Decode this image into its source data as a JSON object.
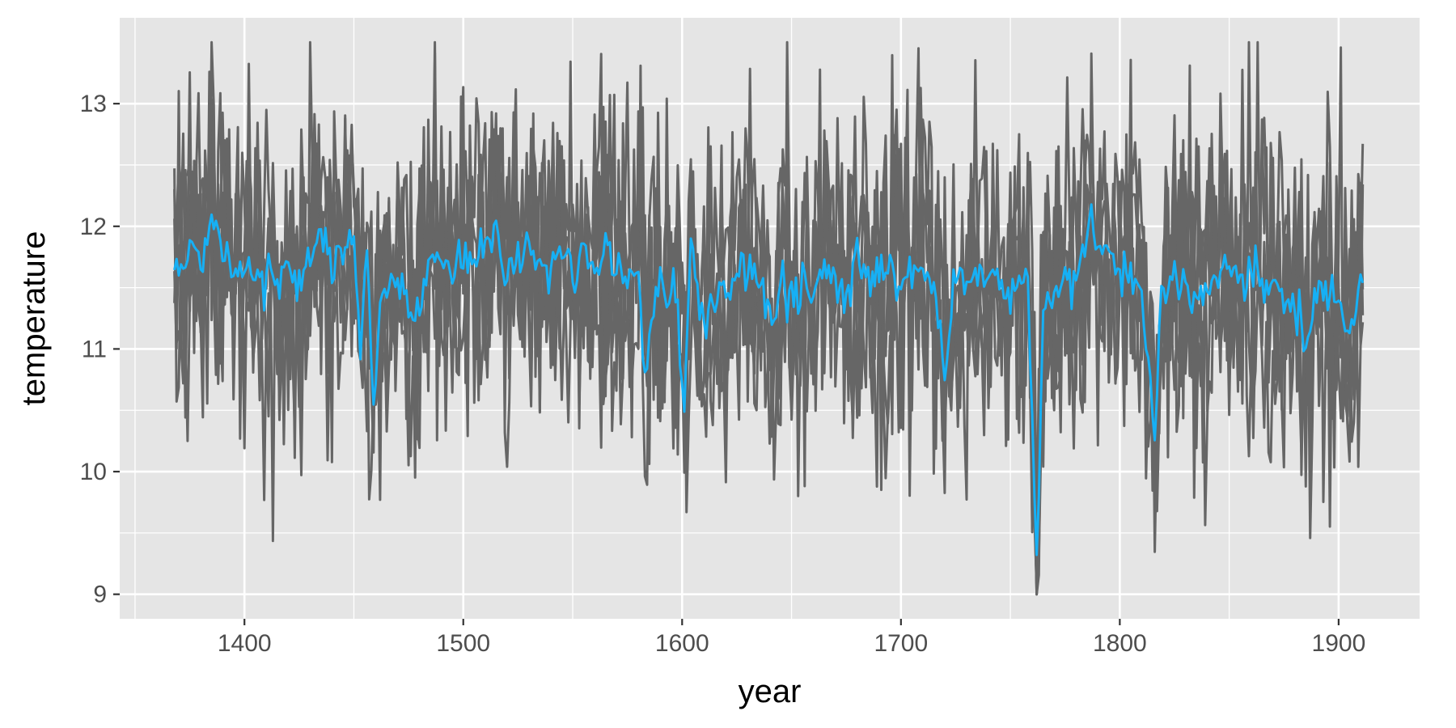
{
  "chart_data": {
    "type": "line",
    "xlabel": "year",
    "ylabel": "temperature",
    "xlim": [
      1343,
      1937
    ],
    "ylim": [
      8.8,
      13.7
    ],
    "x_ticks": [
      1400,
      1500,
      1600,
      1700,
      1800,
      1900
    ],
    "y_ticks": [
      9,
      10,
      11,
      12,
      13
    ],
    "x_tick_labels": [
      "1400",
      "1500",
      "1600",
      "1700",
      "1800",
      "1900"
    ],
    "y_tick_labels": [
      "9",
      "10",
      "11",
      "12",
      "13"
    ],
    "grid": true,
    "panel_background": "#e5e5e5",
    "grid_color": "#ffffff",
    "series": [
      {
        "color": "#666666",
        "kind": "ensemble",
        "x_start": 1368,
        "x_end": 1911,
        "mean": 11.55,
        "spread": 0.65,
        "y_min": 9.0,
        "y_max": 13.5
      },
      {
        "color": "#16b0f5",
        "kind": "mean",
        "x_start": 1368,
        "x_end": 1911,
        "points": [
          [
            1368,
            11.7
          ],
          [
            1372,
            11.65
          ],
          [
            1376,
            11.85
          ],
          [
            1380,
            11.65
          ],
          [
            1385,
            12.05
          ],
          [
            1390,
            11.75
          ],
          [
            1395,
            11.65
          ],
          [
            1400,
            11.75
          ],
          [
            1405,
            11.55
          ],
          [
            1410,
            11.6
          ],
          [
            1415,
            11.55
          ],
          [
            1420,
            11.65
          ],
          [
            1425,
            11.55
          ],
          [
            1430,
            11.85
          ],
          [
            1435,
            11.95
          ],
          [
            1440,
            11.65
          ],
          [
            1445,
            11.75
          ],
          [
            1450,
            11.85
          ],
          [
            1453,
            11.05
          ],
          [
            1456,
            11.75
          ],
          [
            1459,
            10.4
          ],
          [
            1462,
            11.35
          ],
          [
            1465,
            11.55
          ],
          [
            1470,
            11.6
          ],
          [
            1475,
            11.35
          ],
          [
            1480,
            11.25
          ],
          [
            1485,
            11.75
          ],
          [
            1490,
            11.8
          ],
          [
            1495,
            11.65
          ],
          [
            1500,
            11.75
          ],
          [
            1505,
            11.7
          ],
          [
            1510,
            11.8
          ],
          [
            1515,
            11.95
          ],
          [
            1520,
            11.65
          ],
          [
            1525,
            11.75
          ],
          [
            1530,
            11.85
          ],
          [
            1535,
            11.7
          ],
          [
            1540,
            11.65
          ],
          [
            1545,
            11.8
          ],
          [
            1550,
            11.6
          ],
          [
            1555,
            11.85
          ],
          [
            1560,
            11.7
          ],
          [
            1565,
            11.8
          ],
          [
            1570,
            11.75
          ],
          [
            1575,
            11.6
          ],
          [
            1580,
            11.7
          ],
          [
            1584,
            10.85
          ],
          [
            1588,
            11.5
          ],
          [
            1592,
            11.4
          ],
          [
            1596,
            11.6
          ],
          [
            1601,
            10.5
          ],
          [
            1604,
            11.95
          ],
          [
            1608,
            11.35
          ],
          [
            1612,
            11.3
          ],
          [
            1617,
            11.55
          ],
          [
            1622,
            11.45
          ],
          [
            1627,
            11.75
          ],
          [
            1632,
            11.55
          ],
          [
            1637,
            11.5
          ],
          [
            1642,
            11.15
          ],
          [
            1646,
            11.65
          ],
          [
            1651,
            11.5
          ],
          [
            1656,
            11.55
          ],
          [
            1661,
            11.5
          ],
          [
            1666,
            11.75
          ],
          [
            1671,
            11.45
          ],
          [
            1676,
            11.55
          ],
          [
            1681,
            11.65
          ],
          [
            1686,
            11.5
          ],
          [
            1691,
            11.6
          ],
          [
            1696,
            11.5
          ],
          [
            1701,
            11.55
          ],
          [
            1706,
            11.7
          ],
          [
            1711,
            11.55
          ],
          [
            1716,
            11.45
          ],
          [
            1720,
            10.7
          ],
          [
            1724,
            11.5
          ],
          [
            1728,
            11.55
          ],
          [
            1733,
            11.5
          ],
          [
            1738,
            11.55
          ],
          [
            1743,
            11.6
          ],
          [
            1748,
            11.4
          ],
          [
            1753,
            11.6
          ],
          [
            1758,
            11.55
          ],
          [
            1762,
            9.3
          ],
          [
            1765,
            11.25
          ],
          [
            1768,
            11.45
          ],
          [
            1772,
            11.5
          ],
          [
            1777,
            11.55
          ],
          [
            1781,
            11.6
          ],
          [
            1786,
            12.1
          ],
          [
            1790,
            11.75
          ],
          [
            1795,
            11.8
          ],
          [
            1800,
            11.55
          ],
          [
            1805,
            11.6
          ],
          [
            1810,
            11.5
          ],
          [
            1813,
            11.05
          ],
          [
            1816,
            10.25
          ],
          [
            1819,
            11.45
          ],
          [
            1823,
            11.55
          ],
          [
            1828,
            11.6
          ],
          [
            1833,
            11.35
          ],
          [
            1837,
            11.55
          ],
          [
            1842,
            11.5
          ],
          [
            1847,
            11.65
          ],
          [
            1852,
            11.6
          ],
          [
            1857,
            11.55
          ],
          [
            1862,
            11.7
          ],
          [
            1867,
            11.6
          ],
          [
            1872,
            11.5
          ],
          [
            1877,
            11.45
          ],
          [
            1882,
            11.2
          ],
          [
            1885,
            10.9
          ],
          [
            1889,
            11.55
          ],
          [
            1894,
            11.4
          ],
          [
            1899,
            11.5
          ],
          [
            1903,
            11.1
          ],
          [
            1907,
            11.2
          ],
          [
            1911,
            11.6
          ]
        ]
      }
    ]
  }
}
